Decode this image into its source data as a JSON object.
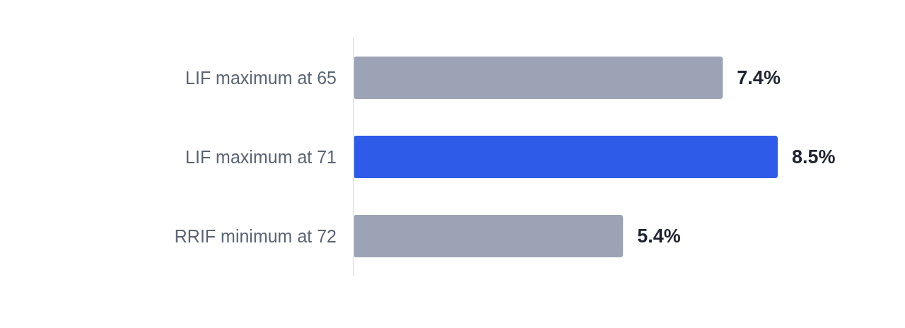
{
  "chart_data": {
    "type": "bar",
    "orientation": "horizontal",
    "categories": [
      "LIF maximum at 65",
      "LIF maximum at 71",
      "RRIF minimum at 72"
    ],
    "values": [
      7.4,
      8.5,
      5.4
    ],
    "colors": [
      "#9ca3b4",
      "#2e5ce8",
      "#9ca3b4"
    ],
    "value_labels": [
      "7.4%",
      "8.5%",
      "5.4%"
    ],
    "tick_labels": "y"
  }
}
